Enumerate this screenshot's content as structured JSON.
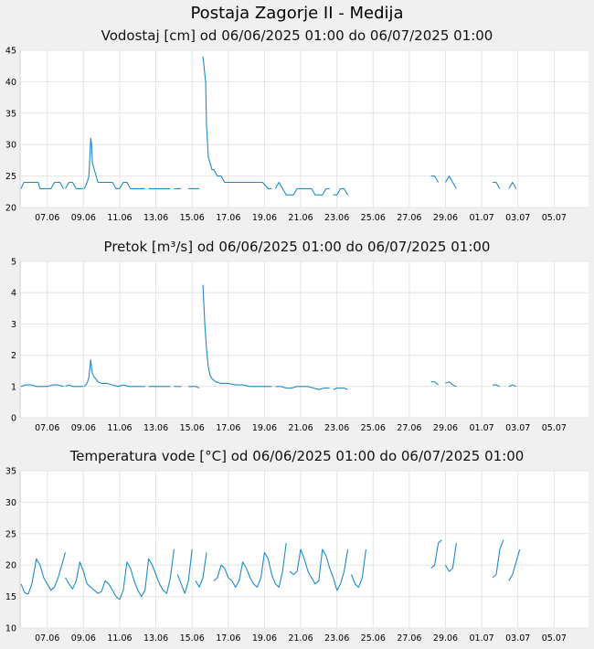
{
  "page_title": "Postaja Zagorje II - Medija",
  "chart_data": [
    {
      "type": "line",
      "title": "Vodostaj [cm] od 06/06/2025 01:00 do 06/07/2025 01:00",
      "ylim": [
        20,
        45
      ],
      "yticks": [
        20,
        25,
        30,
        35,
        40,
        45
      ],
      "xlim": [
        5.5,
        36.9
      ],
      "x_tick_labels": [
        "07.06",
        "09.06",
        "11.06",
        "13.06",
        "15.06",
        "17.06",
        "19.06",
        "21.06",
        "23.06",
        "25.06",
        "27.06",
        "29.06",
        "01.07",
        "03.07",
        "05.07"
      ],
      "x_tick_positions": [
        7,
        9,
        11,
        13,
        15,
        17,
        19,
        21,
        23,
        25,
        27,
        29,
        31,
        33,
        35
      ],
      "grid": true,
      "color": "#1f8bc8",
      "series": [
        {
          "x": [
            5.55,
            5.7,
            6.0,
            6.3,
            6.5,
            6.6,
            6.8,
            7.0,
            7.2,
            7.4,
            7.5,
            7.7,
            7.9
          ],
          "y": [
            23,
            24,
            24,
            24,
            24,
            23,
            23,
            23,
            23,
            24,
            24,
            24,
            23
          ]
        },
        {
          "x": [
            8.0,
            8.2,
            8.4,
            8.6,
            8.8,
            9.0
          ],
          "y": [
            23,
            24,
            24,
            23,
            23,
            23
          ]
        },
        {
          "x": [
            9.05,
            9.2,
            9.3,
            9.35,
            9.4,
            9.45,
            9.5,
            9.6,
            9.7,
            9.8,
            10.0,
            10.2,
            10.4,
            10.6,
            10.8,
            11.0,
            11.2,
            11.4,
            11.6,
            11.8,
            12.0,
            12.2,
            12.4
          ],
          "y": [
            23,
            24,
            25,
            28,
            31,
            30,
            27,
            26,
            25,
            24,
            24,
            24,
            24,
            24,
            23,
            23,
            24,
            24,
            23,
            23,
            23,
            23,
            23
          ]
        },
        {
          "x": [
            12.6,
            12.8,
            13.0,
            13.2,
            13.4,
            13.6,
            13.8
          ],
          "y": [
            23,
            23,
            23,
            23,
            23,
            23,
            23
          ]
        },
        {
          "x": [
            14.0,
            14.2,
            14.4
          ],
          "y": [
            23,
            23,
            23
          ]
        },
        {
          "x": [
            14.8,
            15.0,
            15.2,
            15.4
          ],
          "y": [
            23,
            23,
            23,
            23
          ]
        },
        {
          "x": [
            15.6,
            15.75,
            15.8,
            15.9,
            16.0,
            16.1,
            16.2,
            16.4,
            16.6,
            16.8,
            17.0,
            17.2,
            17.5,
            17.8,
            18.0,
            18.3,
            18.6,
            18.9,
            19.2,
            19.4
          ],
          "y": [
            44,
            40,
            33,
            28,
            27,
            26,
            26,
            25,
            25,
            24,
            24,
            24,
            24,
            24,
            24,
            24,
            24,
            24,
            23,
            23
          ]
        },
        {
          "x": [
            19.6,
            19.8,
            20.0,
            20.2,
            20.4,
            20.6,
            20.8,
            21.0,
            21.2,
            21.4,
            21.6,
            21.8,
            22.0,
            22.2,
            22.4,
            22.6
          ],
          "y": [
            23,
            24,
            23,
            22,
            22,
            22,
            23,
            23,
            23,
            23,
            23,
            22,
            22,
            22,
            23,
            23
          ]
        },
        {
          "x": [
            22.8,
            23.0,
            23.2,
            23.4,
            23.6
          ],
          "y": [
            22,
            22,
            23,
            23,
            22
          ]
        },
        {
          "x": [
            28.2,
            28.4,
            28.6
          ],
          "y": [
            25,
            25,
            24
          ]
        },
        {
          "x": [
            29.0,
            29.2,
            29.4,
            29.6
          ],
          "y": [
            24,
            25,
            24,
            23
          ]
        },
        {
          "x": [
            31.6,
            31.8,
            32.0
          ],
          "y": [
            24,
            24,
            23
          ]
        },
        {
          "x": [
            32.5,
            32.7,
            32.9
          ],
          "y": [
            23,
            24,
            23
          ]
        }
      ]
    },
    {
      "type": "line",
      "title": "Pretok [m³/s] od 06/06/2025 01:00 do 06/07/2025 01:00",
      "ylim": [
        0,
        5
      ],
      "yticks": [
        0,
        1,
        2,
        3,
        4,
        5
      ],
      "xlim": [
        5.5,
        36.9
      ],
      "x_tick_labels": [
        "07.06",
        "09.06",
        "11.06",
        "13.06",
        "15.06",
        "17.06",
        "19.06",
        "21.06",
        "23.06",
        "25.06",
        "27.06",
        "29.06",
        "01.07",
        "03.07",
        "05.07"
      ],
      "x_tick_positions": [
        7,
        9,
        11,
        13,
        15,
        17,
        19,
        21,
        23,
        25,
        27,
        29,
        31,
        33,
        35
      ],
      "grid": true,
      "color": "#1f8bc8",
      "series": [
        {
          "x": [
            5.55,
            5.8,
            6.1,
            6.4,
            6.7,
            7.0,
            7.3,
            7.6,
            7.9
          ],
          "y": [
            1.0,
            1.05,
            1.05,
            1.0,
            1.0,
            1.0,
            1.05,
            1.05,
            1.0
          ]
        },
        {
          "x": [
            8.0,
            8.2,
            8.4,
            8.6,
            8.8,
            9.0
          ],
          "y": [
            1.0,
            1.05,
            1.0,
            1.0,
            1.0,
            1.0
          ]
        },
        {
          "x": [
            9.05,
            9.2,
            9.3,
            9.4,
            9.45,
            9.5,
            9.6,
            9.8,
            10.0,
            10.3,
            10.6,
            10.9,
            11.2,
            11.5,
            11.8,
            12.1,
            12.4
          ],
          "y": [
            1.0,
            1.1,
            1.3,
            1.85,
            1.6,
            1.4,
            1.3,
            1.15,
            1.1,
            1.1,
            1.05,
            1.0,
            1.05,
            1.0,
            1.0,
            1.0,
            1.0
          ]
        },
        {
          "x": [
            12.6,
            12.9,
            13.2,
            13.5,
            13.8
          ],
          "y": [
            1.0,
            1.0,
            1.0,
            1.0,
            1.0
          ]
        },
        {
          "x": [
            14.0,
            14.2,
            14.4
          ],
          "y": [
            1.0,
            1.0,
            1.0
          ]
        },
        {
          "x": [
            14.8,
            15.0,
            15.2,
            15.4
          ],
          "y": [
            1.0,
            1.0,
            1.0,
            0.95
          ]
        },
        {
          "x": [
            15.6,
            15.7,
            15.8,
            15.9,
            16.0,
            16.1,
            16.3,
            16.6,
            17.0,
            17.4,
            17.8,
            18.2,
            18.6,
            19.0,
            19.4
          ],
          "y": [
            4.25,
            3.0,
            2.2,
            1.6,
            1.35,
            1.25,
            1.15,
            1.1,
            1.1,
            1.05,
            1.05,
            1.0,
            1.0,
            1.0,
            1.0
          ]
        },
        {
          "x": [
            19.6,
            19.9,
            20.2,
            20.5,
            20.8,
            21.1,
            21.4,
            21.7,
            22.0,
            22.3,
            22.6
          ],
          "y": [
            1.0,
            1.0,
            0.95,
            0.95,
            1.0,
            1.0,
            1.0,
            0.95,
            0.9,
            0.95,
            0.95
          ]
        },
        {
          "x": [
            22.8,
            23.0,
            23.2,
            23.4,
            23.6
          ],
          "y": [
            0.9,
            0.95,
            0.95,
            0.95,
            0.9
          ]
        },
        {
          "x": [
            28.2,
            28.4,
            28.6
          ],
          "y": [
            1.15,
            1.15,
            1.05
          ]
        },
        {
          "x": [
            29.0,
            29.2,
            29.4,
            29.6
          ],
          "y": [
            1.1,
            1.15,
            1.05,
            1.0
          ]
        },
        {
          "x": [
            31.6,
            31.8,
            32.0
          ],
          "y": [
            1.05,
            1.05,
            1.0
          ]
        },
        {
          "x": [
            32.5,
            32.7,
            32.9
          ],
          "y": [
            1.0,
            1.05,
            1.0
          ]
        }
      ]
    },
    {
      "type": "line",
      "title": "Temperatura vode [°C] od 06/06/2025 01:00 do 06/07/2025 01:00",
      "ylim": [
        10,
        35
      ],
      "yticks": [
        10,
        15,
        20,
        25,
        30,
        35
      ],
      "xlim": [
        5.5,
        36.9
      ],
      "x_tick_labels": [
        "07.06",
        "09.06",
        "11.06",
        "13.06",
        "15.06",
        "17.06",
        "19.06",
        "21.06",
        "23.06",
        "25.06",
        "27.06",
        "29.06",
        "01.07",
        "03.07",
        "05.07"
      ],
      "x_tick_positions": [
        7,
        9,
        11,
        13,
        15,
        17,
        19,
        21,
        23,
        25,
        27,
        29,
        31,
        33,
        35
      ],
      "grid": true,
      "color": "#1f8bc8",
      "series": [
        {
          "x": [
            5.55,
            5.75,
            5.95,
            6.15,
            6.4,
            6.6,
            6.8,
            7.0,
            7.2,
            7.4,
            7.6,
            7.8,
            8.0
          ],
          "y": [
            17,
            15.6,
            15.4,
            17,
            21,
            20,
            18,
            17,
            16,
            16.5,
            18,
            20,
            22
          ]
        },
        {
          "x": [
            8.0,
            8.2,
            8.4,
            8.6,
            8.8,
            9.0,
            9.2,
            9.4,
            9.6,
            9.8,
            10.0,
            10.2,
            10.4,
            10.6,
            10.8,
            11.0
          ],
          "y": [
            18,
            17,
            16.2,
            17.5,
            20.5,
            19,
            17,
            16.5,
            16,
            15.5,
            15.8,
            17.5,
            17,
            16,
            15,
            14.5
          ]
        },
        {
          "x": [
            11.0,
            11.2,
            11.4,
            11.6,
            11.8,
            12.0,
            12.2,
            12.4,
            12.6,
            12.8,
            13.0,
            13.2,
            13.4,
            13.6,
            13.8,
            14.0
          ],
          "y": [
            14.5,
            16,
            20.5,
            19.5,
            17.5,
            16,
            15,
            16,
            21,
            20,
            18.5,
            17,
            16,
            15.5,
            18,
            22.5
          ]
        },
        {
          "x": [
            14.2,
            14.4,
            14.6,
            14.8,
            15.0
          ],
          "y": [
            18.5,
            17,
            15.5,
            17.5,
            22.5
          ]
        },
        {
          "x": [
            15.2,
            15.4,
            15.6,
            15.8
          ],
          "y": [
            17.5,
            16.5,
            18,
            22
          ]
        },
        {
          "x": [
            16.2,
            16.4,
            16.6,
            16.8,
            17.0,
            17.2,
            17.4,
            17.6,
            17.8,
            18.0,
            18.2,
            18.4,
            18.6,
            18.8,
            19.0,
            19.2,
            19.4,
            19.6,
            19.8,
            20.0,
            20.2
          ],
          "y": [
            17.5,
            18,
            20,
            19.5,
            18,
            17.5,
            16.5,
            17.5,
            20.5,
            19.5,
            18,
            17,
            16.5,
            18,
            22,
            21,
            18.5,
            17,
            16.5,
            19,
            23.5
          ]
        },
        {
          "x": [
            20.4,
            20.6,
            20.8,
            21.0,
            21.2,
            21.4,
            21.6,
            21.8,
            22.0,
            22.2,
            22.4,
            22.6,
            22.8,
            23.0,
            23.2,
            23.4,
            23.6
          ],
          "y": [
            19,
            18.5,
            19,
            22.5,
            21,
            19,
            18,
            17,
            17.5,
            22.5,
            21.5,
            19.5,
            18,
            16,
            17,
            19,
            22.5
          ]
        },
        {
          "x": [
            23.8,
            24.0,
            24.2,
            24.4,
            24.6
          ],
          "y": [
            18.5,
            17,
            16.5,
            18,
            22.5
          ]
        },
        {
          "x": [
            28.2,
            28.4,
            28.6,
            28.8
          ],
          "y": [
            19.5,
            20,
            23.5,
            24
          ]
        },
        {
          "x": [
            29.0,
            29.2,
            29.4,
            29.6
          ],
          "y": [
            20,
            19,
            19.5,
            23.5
          ]
        },
        {
          "x": [
            31.6,
            31.8,
            32.0,
            32.2
          ],
          "y": [
            18,
            18.5,
            22.5,
            24
          ]
        },
        {
          "x": [
            32.5,
            32.7,
            32.9,
            33.1
          ],
          "y": [
            17.5,
            18.5,
            20.5,
            22.5
          ]
        }
      ]
    }
  ]
}
